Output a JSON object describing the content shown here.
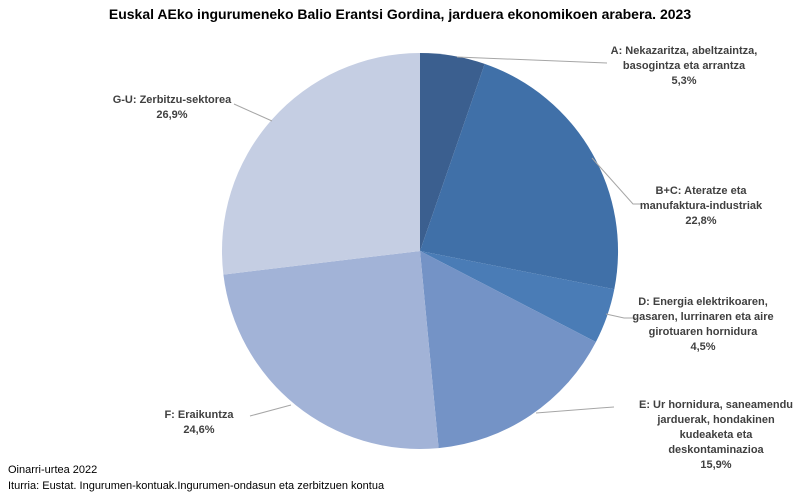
{
  "chart_data": {
    "type": "pie",
    "title": "Euskal AEko ingurumeneko Balio Erantsi Gordina, jarduera ekonomikoen arabera. 2023",
    "start_angle_deg": 0,
    "direction": "clockwise",
    "legend_position": "none",
    "slices": [
      {
        "key": "a",
        "label": "A: Nekazaritza, abeltzaintza,\nbasogintza eta arrantza",
        "pct_label": "5,3%",
        "value": 5.3,
        "color": "#3B5F8F"
      },
      {
        "key": "bc",
        "label": "B+C: Ateratze eta\nmanufaktura-industriak",
        "pct_label": "22,8%",
        "value": 22.8,
        "color": "#4070A8"
      },
      {
        "key": "d",
        "label": "D: Energia elektrikoaren,\ngasaren, lurrinaren eta aire\ngirotuaren hornidura",
        "pct_label": "4,5%",
        "value": 4.5,
        "color": "#4A7CB6"
      },
      {
        "key": "e",
        "label": "E: Ur hornidura, saneamendu\njarduerak, hondakinen\nkudeaketa eta\ndeskontaminazioa",
        "pct_label": "15,9%",
        "value": 15.9,
        "color": "#7493C6"
      },
      {
        "key": "f",
        "label": "F: Eraikuntza",
        "pct_label": "24,6%",
        "value": 24.6,
        "color": "#A2B3D7"
      },
      {
        "key": "gu",
        "label": "G-U: Zerbitzu-sektorea",
        "pct_label": "26,9%",
        "value": 26.9,
        "color": "#C5CEE3"
      }
    ]
  },
  "footer": {
    "line1": "Oinarri-urtea 2022",
    "line2": "Iturria: Eustat. Ingurumen-kontuak.Ingurumen-ondasun eta zerbitzuen kontua"
  }
}
